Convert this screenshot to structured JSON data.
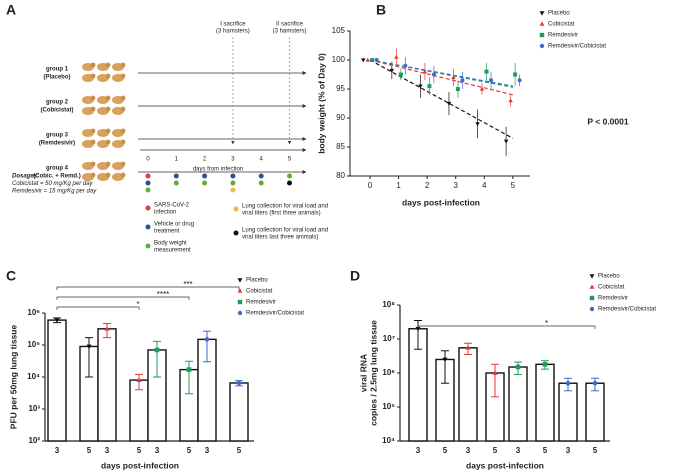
{
  "panel_a": {
    "letter": "A",
    "groups": [
      [
        "group 1",
        "(Placebo)"
      ],
      [
        "group 2",
        "(Cobicistat)"
      ],
      [
        "group 3",
        "(Remdesivir)"
      ],
      [
        "group 4",
        "(Cobic. + Remd.)"
      ]
    ],
    "sacrifices": [
      [
        "I sacrifice",
        "(3 hamsters)"
      ],
      [
        "II sacrifice",
        "(3 hamsters)"
      ]
    ],
    "timeline_ticks": [
      "0",
      "1",
      "2",
      "3",
      "4",
      "5"
    ],
    "timeline_label": "days from infection",
    "dosages": [
      "Dosages:",
      "Cobicistat = 50 mg/Kg per day",
      "Remdesivir = 15 mg/Kg per day"
    ],
    "legend": [
      [
        "SARS-CoV-2",
        "infection"
      ],
      [
        "Vehicle or drug",
        "treatment"
      ],
      [
        "Body weight",
        "measurement"
      ],
      [
        "Lung collection for viral load and",
        "viral titers (first three animals)"
      ],
      [
        "Lung collection for viral load and",
        "viral titers last  three animals)"
      ]
    ]
  },
  "chart_data": [
    {
      "type": "line",
      "letter": "B",
      "x": [
        0,
        1,
        2,
        3,
        4,
        5
      ],
      "xlim": [
        -0.7,
        5.6
      ],
      "xticks": [
        0,
        1,
        2,
        3,
        4,
        5
      ],
      "ylim": [
        80,
        105
      ],
      "yticks": [
        80,
        85,
        90,
        95,
        100,
        105
      ],
      "xlabel": "days post-infection",
      "ylabel": "body weight (% of Day 0)",
      "annotation": "P < 0.0001",
      "series": [
        {
          "name": "Placebo",
          "color": "#111111",
          "marker": "triangle-down",
          "values": [
            100,
            98.2,
            95.5,
            92.5,
            89,
            86
          ],
          "errors": [
            0.3,
            1.5,
            2,
            2,
            2.5,
            2.5
          ],
          "trend": [
            100,
            86.5
          ]
        },
        {
          "name": "Cobicistat",
          "color": "#e53935",
          "marker": "triangle-up",
          "values": [
            100,
            100.5,
            98,
            97,
            95,
            93
          ],
          "errors": [
            0.3,
            1.5,
            1.5,
            1.5,
            1,
            1
          ],
          "trend": [
            100,
            94
          ]
        },
        {
          "name": "Remdesivir",
          "color": "#1e9e5a",
          "marker": "square",
          "values": [
            100,
            97.5,
            95.5,
            95,
            98,
            97.5
          ],
          "errors": [
            0.3,
            1,
            1.5,
            1.5,
            1.5,
            2
          ],
          "trend": [
            100,
            95.3
          ]
        },
        {
          "name": "Remdesivir/Cobicistat",
          "color": "#3d6cc9",
          "marker": "circle",
          "values": [
            100,
            99,
            97.5,
            96.5,
            96.5,
            96.5
          ],
          "errors": [
            0.3,
            1.5,
            1.5,
            1.5,
            1.5,
            1
          ],
          "trend": [
            100,
            95.5
          ]
        }
      ]
    },
    {
      "type": "bar",
      "letter": "C",
      "log": true,
      "categories": [
        "3",
        "5"
      ],
      "ylim": [
        100,
        1000000
      ],
      "yticks": [
        {
          "value": 100,
          "label": "10²"
        },
        {
          "value": 1000,
          "label": "10³"
        },
        {
          "value": 10000,
          "label": "10⁴"
        },
        {
          "value": 100000,
          "label": "10⁵"
        },
        {
          "value": 1000000,
          "label": "10⁶"
        }
      ],
      "xlabel": "days post-infection",
      "ylabel": [
        "PFU per 50mg lung tissue"
      ],
      "series": [
        {
          "name": "Placebo",
          "color": "#111111",
          "marker": "triangle-down",
          "values": [
            600000,
            90000
          ],
          "errors": [
            100000,
            80000
          ]
        },
        {
          "name": "Cobicistat",
          "color": "#e53935",
          "marker": "triangle-up",
          "values": [
            320000,
            8000
          ],
          "errors": [
            150000,
            4000
          ]
        },
        {
          "name": "Remdesivir",
          "color": "#1e9e5a",
          "marker": "square",
          "values": [
            70000,
            17000
          ],
          "errors": [
            60000,
            14000
          ]
        },
        {
          "name": "Remdesivir/Cobicistat",
          "color": "#3d6cc9",
          "marker": "circle",
          "values": [
            150000,
            6500
          ],
          "errors": [
            120000,
            1200
          ]
        }
      ],
      "comparisons": [
        {
          "from": 0,
          "to": 7,
          "label": "***"
        },
        {
          "from": 0,
          "to": 5,
          "label": "****"
        },
        {
          "from": 0,
          "to": 3,
          "label": "*"
        }
      ]
    },
    {
      "type": "bar",
      "letter": "D",
      "log": true,
      "categories": [
        "3",
        "5"
      ],
      "ylim": [
        10000,
        100000000
      ],
      "yticks": [
        {
          "value": 10000,
          "label": "10⁴"
        },
        {
          "value": 100000,
          "label": "10⁵"
        },
        {
          "value": 1000000,
          "label": "10⁶"
        },
        {
          "value": 10000000,
          "label": "10⁷"
        },
        {
          "value": 100000000,
          "label": "10⁸"
        }
      ],
      "xlabel": "days post-infection",
      "ylabel": [
        "viral RNA",
        "copies / 2.5mg lung tissue"
      ],
      "series": [
        {
          "name": "Placebo",
          "color": "#111111",
          "marker": "triangle-down",
          "values": [
            20000000,
            2500000
          ],
          "errors": [
            15000000,
            2000000
          ]
        },
        {
          "name": "Cobicistat",
          "color": "#e53935",
          "marker": "triangle-up",
          "values": [
            5500000,
            1000000
          ],
          "errors": [
            2000000,
            800000
          ]
        },
        {
          "name": "Remdesivir",
          "color": "#1e9e5a",
          "marker": "square",
          "values": [
            1500000,
            1800000
          ],
          "errors": [
            600000,
            500000
          ]
        },
        {
          "name": "Remdesivir/Cobicistat",
          "color": "#3d6cc9",
          "marker": "circle",
          "values": [
            500000,
            500000
          ],
          "errors": [
            200000,
            200000
          ]
        }
      ],
      "comparisons": [
        {
          "from": 0,
          "to": 7,
          "label": "*"
        }
      ]
    }
  ]
}
